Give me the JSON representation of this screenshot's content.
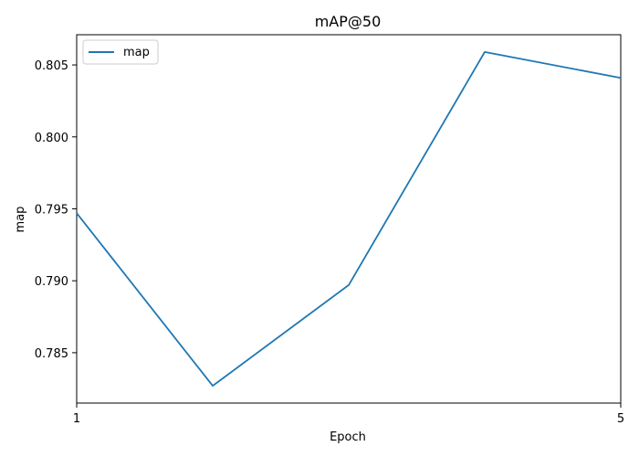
{
  "chart_data": {
    "type": "line",
    "title": "mAP@50",
    "xlabel": "Epoch",
    "ylabel": "map",
    "x": [
      1,
      2,
      3,
      4,
      5
    ],
    "x_ticks": [
      "1",
      "5"
    ],
    "xlim": [
      1,
      5
    ],
    "ylim": [
      0.7815,
      0.8071
    ],
    "y_ticks": [
      0.785,
      0.79,
      0.795,
      0.8,
      0.805
    ],
    "y_tick_labels": [
      "0.785",
      "0.790",
      "0.795",
      "0.800",
      "0.805"
    ],
    "series": [
      {
        "name": "map",
        "color": "#1f77b4",
        "values": [
          0.7947,
          0.7827,
          0.7897,
          0.8059,
          0.8041
        ]
      }
    ],
    "legend_position": "top-left",
    "grid": false
  }
}
